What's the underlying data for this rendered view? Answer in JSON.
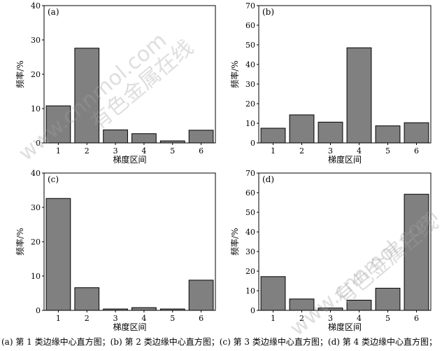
{
  "watermark": {
    "cn": "有色金属在线",
    "url": "www.cnnmol.com"
  },
  "caption": "(a) 第 1 类边缘中心直方图；(b) 第 2 类边缘中心直方图；(c) 第 3 类边缘中心直方图；(d) 第 4 类边缘中心直方图；",
  "colors": {
    "bar": "#808080",
    "stroke": "#000000"
  },
  "chart_data": [
    {
      "type": "bar",
      "panel": "(a)",
      "categories": [
        "1",
        "2",
        "3",
        "4",
        "5",
        "6"
      ],
      "values": [
        10.8,
        27.6,
        3.8,
        2.7,
        0.6,
        3.7
      ],
      "xlabel": "梯度区间",
      "ylabel": "频率/%",
      "ylim": [
        0,
        40
      ],
      "yticks": [
        0,
        10,
        20,
        30,
        40
      ]
    },
    {
      "type": "bar",
      "panel": "(b)",
      "categories": [
        "1",
        "2",
        "3",
        "4",
        "5",
        "6"
      ],
      "values": [
        7.5,
        14.3,
        10.6,
        48.5,
        8.7,
        10.3
      ],
      "xlabel": "梯度区间",
      "ylabel": "频率/%",
      "ylim": [
        0,
        70
      ],
      "yticks": [
        0,
        10,
        20,
        30,
        40,
        50,
        60,
        70
      ]
    },
    {
      "type": "bar",
      "panel": "(c)",
      "categories": [
        "1",
        "2",
        "3",
        "4",
        "5",
        "6"
      ],
      "values": [
        32.6,
        6.6,
        0.4,
        0.8,
        0.4,
        8.8
      ],
      "xlabel": "梯度区间",
      "ylabel": "频率/%",
      "ylim": [
        0,
        40
      ],
      "yticks": [
        0,
        10,
        20,
        30,
        40
      ]
    },
    {
      "type": "bar",
      "panel": "(d)",
      "categories": [
        "1",
        "2",
        "3",
        "4",
        "5",
        "6"
      ],
      "values": [
        17.2,
        5.8,
        1.2,
        5.2,
        11.3,
        59.2
      ],
      "xlabel": "梯度区间",
      "ylabel": "频率/%",
      "ylim": [
        0,
        70
      ],
      "yticks": [
        0,
        10,
        20,
        30,
        40,
        50,
        60,
        70
      ]
    }
  ]
}
